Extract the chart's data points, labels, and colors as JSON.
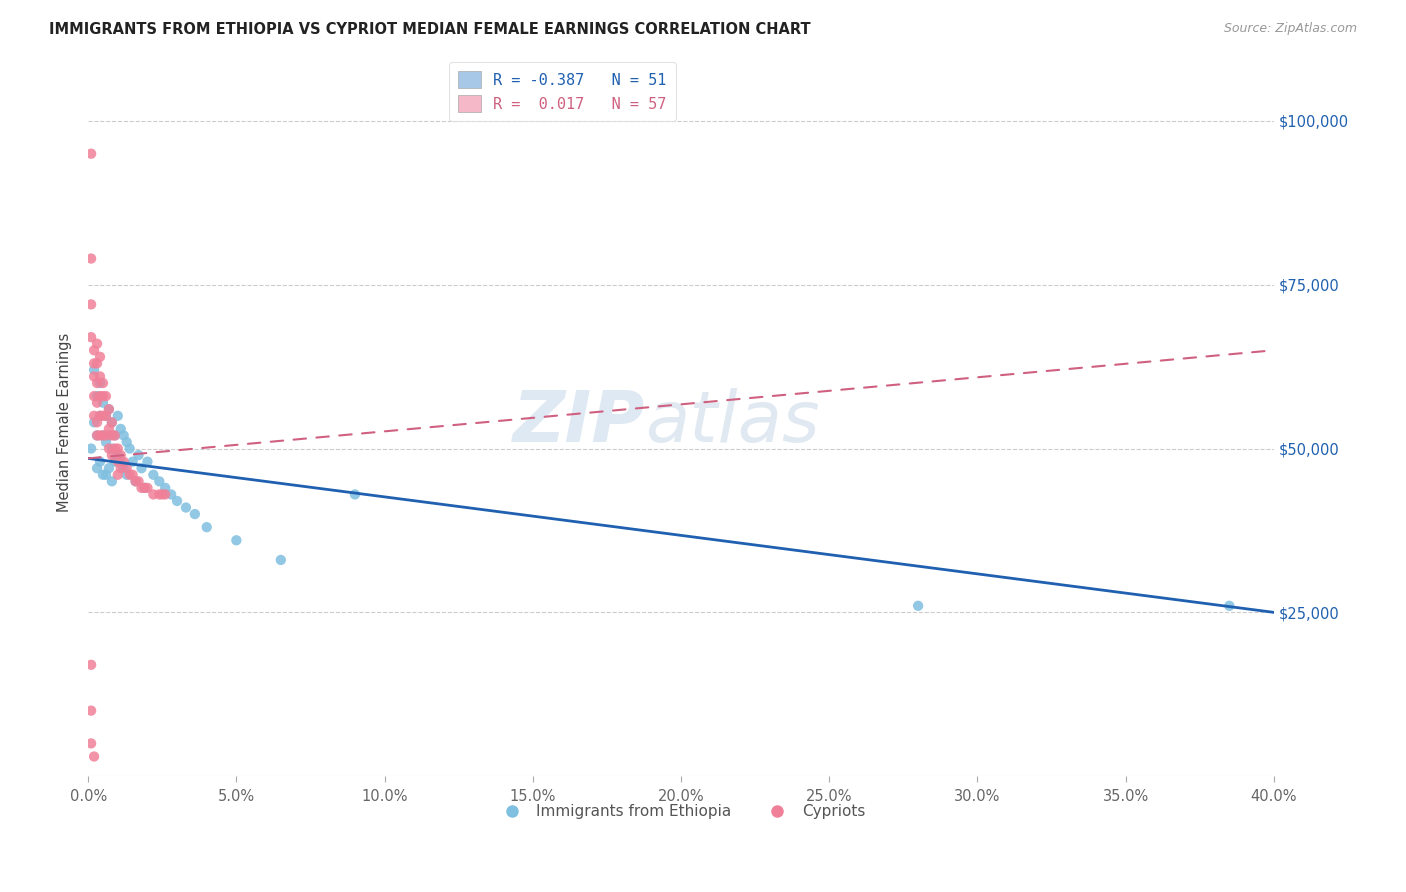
{
  "title": "IMMIGRANTS FROM ETHIOPIA VS CYPRIOT MEDIAN FEMALE EARNINGS CORRELATION CHART",
  "source": "Source: ZipAtlas.com",
  "ylabel": "Median Female Earnings",
  "y_ticks": [
    0,
    25000,
    50000,
    75000,
    100000
  ],
  "y_tick_labels": [
    "",
    "$25,000",
    "$50,000",
    "$75,000",
    "$100,000"
  ],
  "x_min": 0.0,
  "x_max": 0.4,
  "y_min": 0,
  "y_max": 108000,
  "legend_entries": [
    {
      "label": "R = -0.387   N = 51",
      "color": "#a8c8e8"
    },
    {
      "label": "R =  0.017   N = 57",
      "color": "#f4b8c8"
    }
  ],
  "legend_bottom": [
    "Immigrants from Ethiopia",
    "Cypriots"
  ],
  "blue_color": "#7fbfdf",
  "pink_color": "#f08098",
  "blue_line_color": "#2060b0",
  "pink_line_color": "#d06080",
  "watermark_zip": "ZIP",
  "watermark_atlas": "atlas",
  "ethiopia_x": [
    0.001,
    0.002,
    0.002,
    0.003,
    0.003,
    0.003,
    0.004,
    0.004,
    0.004,
    0.005,
    0.005,
    0.005,
    0.006,
    0.006,
    0.006,
    0.007,
    0.007,
    0.007,
    0.008,
    0.008,
    0.008,
    0.009,
    0.009,
    0.01,
    0.01,
    0.011,
    0.011,
    0.012,
    0.012,
    0.013,
    0.013,
    0.014,
    0.015,
    0.016,
    0.017,
    0.018,
    0.019,
    0.02,
    0.022,
    0.024,
    0.026,
    0.028,
    0.03,
    0.033,
    0.036,
    0.04,
    0.05,
    0.065,
    0.09,
    0.28,
    0.385
  ],
  "ethiopia_y": [
    50000,
    62000,
    54000,
    58000,
    52000,
    47000,
    60000,
    55000,
    48000,
    57000,
    52000,
    46000,
    55000,
    51000,
    46000,
    56000,
    52000,
    47000,
    54000,
    50000,
    45000,
    52000,
    48000,
    55000,
    49000,
    53000,
    48000,
    52000,
    47000,
    51000,
    46000,
    50000,
    48000,
    45000,
    49000,
    47000,
    44000,
    48000,
    46000,
    45000,
    44000,
    43000,
    42000,
    41000,
    40000,
    38000,
    36000,
    33000,
    43000,
    26000,
    26000
  ],
  "cypriot_x": [
    0.001,
    0.001,
    0.001,
    0.001,
    0.002,
    0.002,
    0.002,
    0.002,
    0.002,
    0.003,
    0.003,
    0.003,
    0.003,
    0.003,
    0.003,
    0.004,
    0.004,
    0.004,
    0.004,
    0.004,
    0.005,
    0.005,
    0.005,
    0.005,
    0.006,
    0.006,
    0.006,
    0.007,
    0.007,
    0.007,
    0.008,
    0.008,
    0.008,
    0.009,
    0.009,
    0.01,
    0.01,
    0.01,
    0.011,
    0.011,
    0.012,
    0.013,
    0.014,
    0.015,
    0.016,
    0.017,
    0.018,
    0.019,
    0.02,
    0.022,
    0.024,
    0.026,
    0.001,
    0.001,
    0.001,
    0.002,
    0.025
  ],
  "cypriot_y": [
    95000,
    79000,
    72000,
    67000,
    65000,
    63000,
    61000,
    58000,
    55000,
    66000,
    63000,
    60000,
    57000,
    54000,
    52000,
    64000,
    61000,
    58000,
    55000,
    52000,
    60000,
    58000,
    55000,
    52000,
    58000,
    55000,
    52000,
    56000,
    53000,
    50000,
    54000,
    52000,
    49000,
    52000,
    50000,
    50000,
    48000,
    46000,
    49000,
    47000,
    48000,
    47000,
    46000,
    46000,
    45000,
    45000,
    44000,
    44000,
    44000,
    43000,
    43000,
    43000,
    17000,
    10000,
    5000,
    3000,
    43000
  ]
}
